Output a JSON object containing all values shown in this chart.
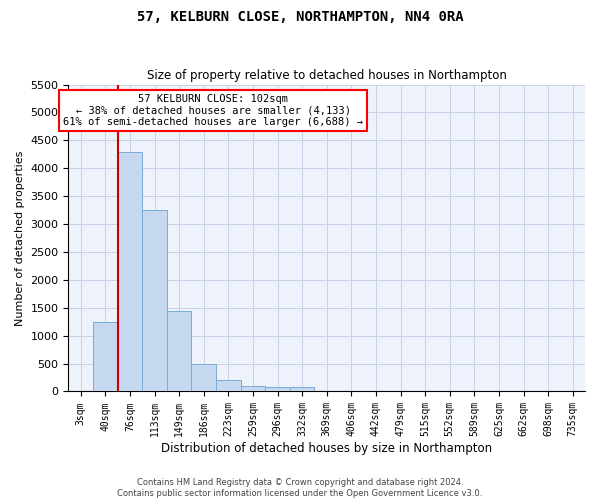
{
  "title1": "57, KELBURN CLOSE, NORTHAMPTON, NN4 0RA",
  "title2": "Size of property relative to detached houses in Northampton",
  "xlabel": "Distribution of detached houses by size in Northampton",
  "ylabel": "Number of detached properties",
  "categories": [
    "3sqm",
    "40sqm",
    "76sqm",
    "113sqm",
    "149sqm",
    "186sqm",
    "223sqm",
    "259sqm",
    "296sqm",
    "332sqm",
    "369sqm",
    "406sqm",
    "442sqm",
    "479sqm",
    "515sqm",
    "552sqm",
    "589sqm",
    "625sqm",
    "662sqm",
    "698sqm",
    "735sqm"
  ],
  "bar_heights": [
    0,
    1250,
    4300,
    3250,
    1450,
    500,
    200,
    100,
    75,
    75,
    0,
    0,
    0,
    0,
    0,
    0,
    0,
    0,
    0,
    0,
    0
  ],
  "bar_color": "#c5d8f0",
  "bar_edge_color": "#7aadd4",
  "property_size": "102sqm",
  "annotation_title": "57 KELBURN CLOSE: 102sqm",
  "annotation_line1": "← 38% of detached houses are smaller (4,133)",
  "annotation_line2": "61% of semi-detached houses are larger (6,688) →",
  "ylim": [
    0,
    5500
  ],
  "yticks": [
    0,
    500,
    1000,
    1500,
    2000,
    2500,
    3000,
    3500,
    4000,
    4500,
    5000,
    5500
  ],
  "footer1": "Contains HM Land Registry data © Crown copyright and database right 2024.",
  "footer2": "Contains public sector information licensed under the Open Government Licence v3.0.",
  "bg_color": "#eef2fb",
  "grid_color": "#c8d0e8",
  "red_line_color": "#cc0000",
  "title1_fontsize": 10,
  "title2_fontsize": 8.5,
  "ylabel_fontsize": 8,
  "xlabel_fontsize": 8.5,
  "ytick_fontsize": 8,
  "xtick_fontsize": 7,
  "annotation_fontsize": 7.5,
  "footer_fontsize": 6
}
